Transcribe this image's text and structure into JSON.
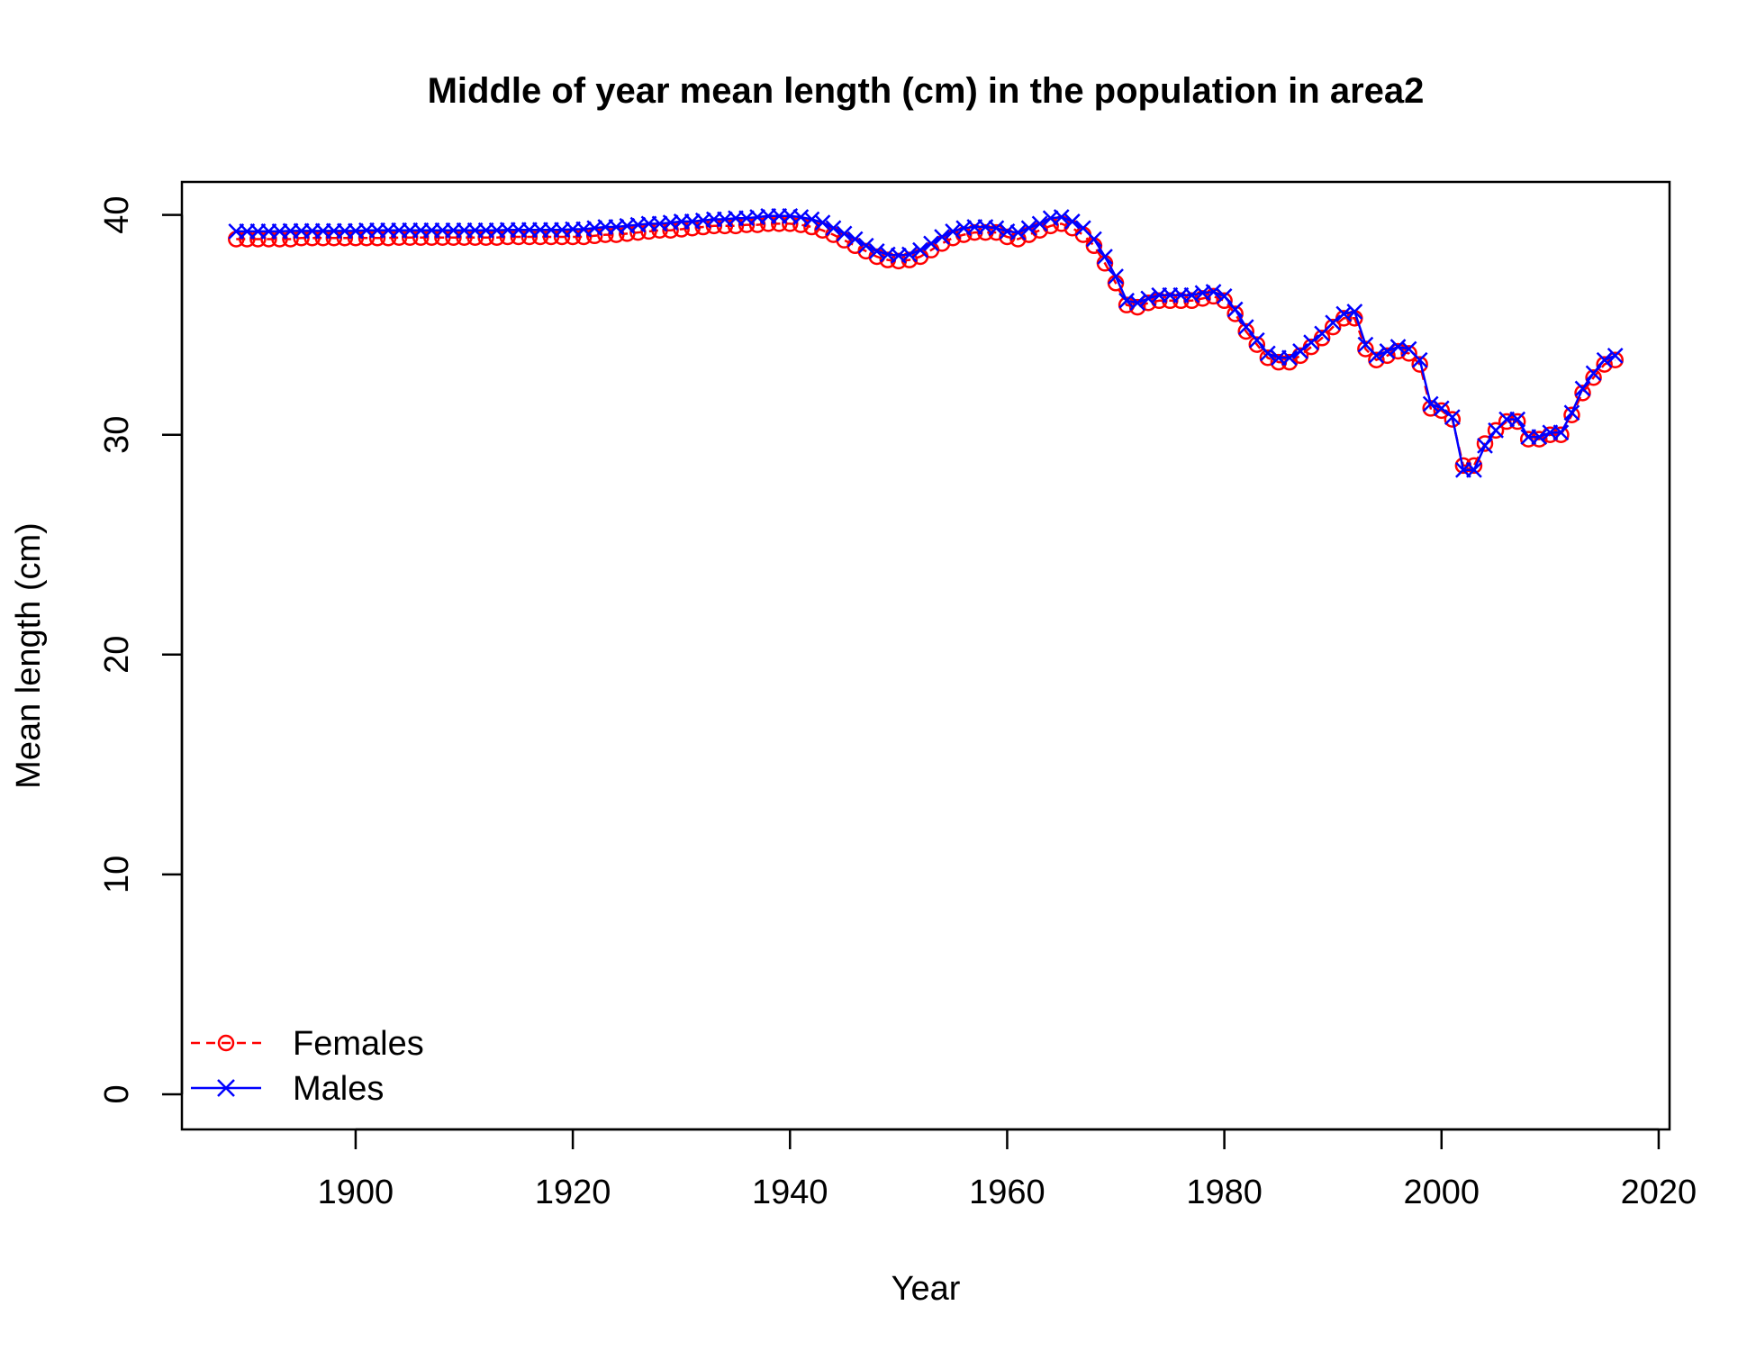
{
  "chart_data": {
    "type": "line",
    "title": "Middle of year mean length (cm) in the population in area2",
    "xlabel": "Year",
    "ylabel": "Mean length (cm)",
    "xlim": [
      1884,
      2021
    ],
    "ylim": [
      -1.6,
      41.5
    ],
    "xticks": [
      1900,
      1920,
      1940,
      1960,
      1980,
      2000,
      2020
    ],
    "yticks": [
      0,
      10,
      20,
      30,
      40
    ],
    "grid": false,
    "legend_position": "bottom-left",
    "x": [
      1889,
      1890,
      1891,
      1892,
      1893,
      1894,
      1895,
      1896,
      1897,
      1898,
      1899,
      1900,
      1901,
      1902,
      1903,
      1904,
      1905,
      1906,
      1907,
      1908,
      1909,
      1910,
      1911,
      1912,
      1913,
      1914,
      1915,
      1916,
      1917,
      1918,
      1919,
      1920,
      1921,
      1922,
      1923,
      1924,
      1925,
      1926,
      1927,
      1928,
      1929,
      1930,
      1931,
      1932,
      1933,
      1934,
      1935,
      1936,
      1937,
      1938,
      1939,
      1940,
      1941,
      1942,
      1943,
      1944,
      1945,
      1946,
      1947,
      1948,
      1949,
      1950,
      1951,
      1952,
      1953,
      1954,
      1955,
      1956,
      1957,
      1958,
      1959,
      1960,
      1961,
      1962,
      1963,
      1964,
      1965,
      1966,
      1967,
      1968,
      1969,
      1970,
      1971,
      1972,
      1973,
      1974,
      1975,
      1976,
      1977,
      1978,
      1979,
      1980,
      1981,
      1982,
      1983,
      1984,
      1985,
      1986,
      1987,
      1988,
      1989,
      1990,
      1991,
      1992,
      1993,
      1994,
      1995,
      1996,
      1997,
      1998,
      1999,
      2000,
      2001,
      2002,
      2003,
      2004,
      2005,
      2006,
      2007,
      2008,
      2009,
      2010,
      2011,
      2012,
      2013,
      2014,
      2015,
      2016
    ],
    "series": [
      {
        "name": "Females",
        "color": "#ff0000",
        "line_style": "dashed",
        "marker": "circle",
        "values": [
          38.9,
          38.9,
          38.9,
          38.9,
          38.9,
          38.9,
          38.95,
          38.95,
          38.95,
          38.95,
          38.95,
          38.95,
          38.95,
          38.95,
          38.95,
          38.97,
          38.97,
          38.97,
          38.97,
          38.97,
          38.97,
          38.97,
          38.97,
          38.97,
          38.97,
          39.0,
          39.0,
          39.0,
          39.0,
          39.0,
          39.0,
          39.0,
          39.0,
          39.05,
          39.1,
          39.1,
          39.15,
          39.2,
          39.25,
          39.3,
          39.3,
          39.35,
          39.4,
          39.45,
          39.5,
          39.5,
          39.5,
          39.55,
          39.55,
          39.6,
          39.6,
          39.6,
          39.55,
          39.45,
          39.3,
          39.1,
          38.85,
          38.6,
          38.35,
          38.1,
          37.95,
          37.9,
          37.95,
          38.1,
          38.4,
          38.7,
          38.95,
          39.1,
          39.2,
          39.2,
          39.2,
          39.0,
          38.9,
          39.1,
          39.3,
          39.5,
          39.6,
          39.4,
          39.1,
          38.6,
          37.8,
          36.9,
          35.9,
          35.8,
          36.0,
          36.1,
          36.1,
          36.1,
          36.1,
          36.2,
          36.3,
          36.1,
          35.5,
          34.7,
          34.1,
          33.5,
          33.3,
          33.3,
          33.6,
          34.0,
          34.4,
          34.9,
          35.3,
          35.3,
          33.9,
          33.4,
          33.6,
          33.8,
          33.7,
          33.2,
          31.2,
          31.1,
          30.7,
          28.6,
          28.6,
          29.6,
          30.2,
          30.6,
          30.6,
          29.8,
          29.8,
          30.0,
          30.0,
          30.9,
          31.9,
          32.6,
          33.2,
          33.4
        ]
      },
      {
        "name": "Males",
        "color": "#0000ff",
        "line_style": "solid",
        "marker": "cross",
        "values": [
          39.25,
          39.25,
          39.25,
          39.25,
          39.25,
          39.27,
          39.27,
          39.27,
          39.27,
          39.27,
          39.27,
          39.27,
          39.3,
          39.3,
          39.3,
          39.3,
          39.3,
          39.3,
          39.3,
          39.3,
          39.3,
          39.3,
          39.3,
          39.3,
          39.3,
          39.32,
          39.32,
          39.32,
          39.32,
          39.32,
          39.32,
          39.35,
          39.35,
          39.4,
          39.45,
          39.45,
          39.5,
          39.55,
          39.6,
          39.6,
          39.65,
          39.7,
          39.7,
          39.75,
          39.8,
          39.8,
          39.85,
          39.85,
          39.9,
          39.95,
          39.95,
          39.95,
          39.9,
          39.8,
          39.65,
          39.4,
          39.15,
          38.9,
          38.6,
          38.35,
          38.2,
          38.15,
          38.2,
          38.4,
          38.7,
          39.0,
          39.25,
          39.4,
          39.45,
          39.45,
          39.4,
          39.25,
          39.2,
          39.4,
          39.6,
          39.85,
          39.9,
          39.7,
          39.4,
          38.9,
          38.1,
          37.2,
          36.1,
          36.0,
          36.2,
          36.35,
          36.35,
          36.35,
          36.35,
          36.45,
          36.5,
          36.3,
          35.7,
          34.9,
          34.3,
          33.7,
          33.5,
          33.5,
          33.8,
          34.2,
          34.6,
          35.1,
          35.5,
          35.6,
          34.1,
          33.6,
          33.8,
          34.0,
          33.9,
          33.4,
          31.4,
          31.2,
          30.8,
          28.4,
          28.4,
          29.5,
          30.2,
          30.7,
          30.7,
          29.9,
          29.9,
          30.1,
          30.1,
          31.0,
          32.1,
          32.8,
          33.4,
          33.6
        ]
      }
    ]
  }
}
